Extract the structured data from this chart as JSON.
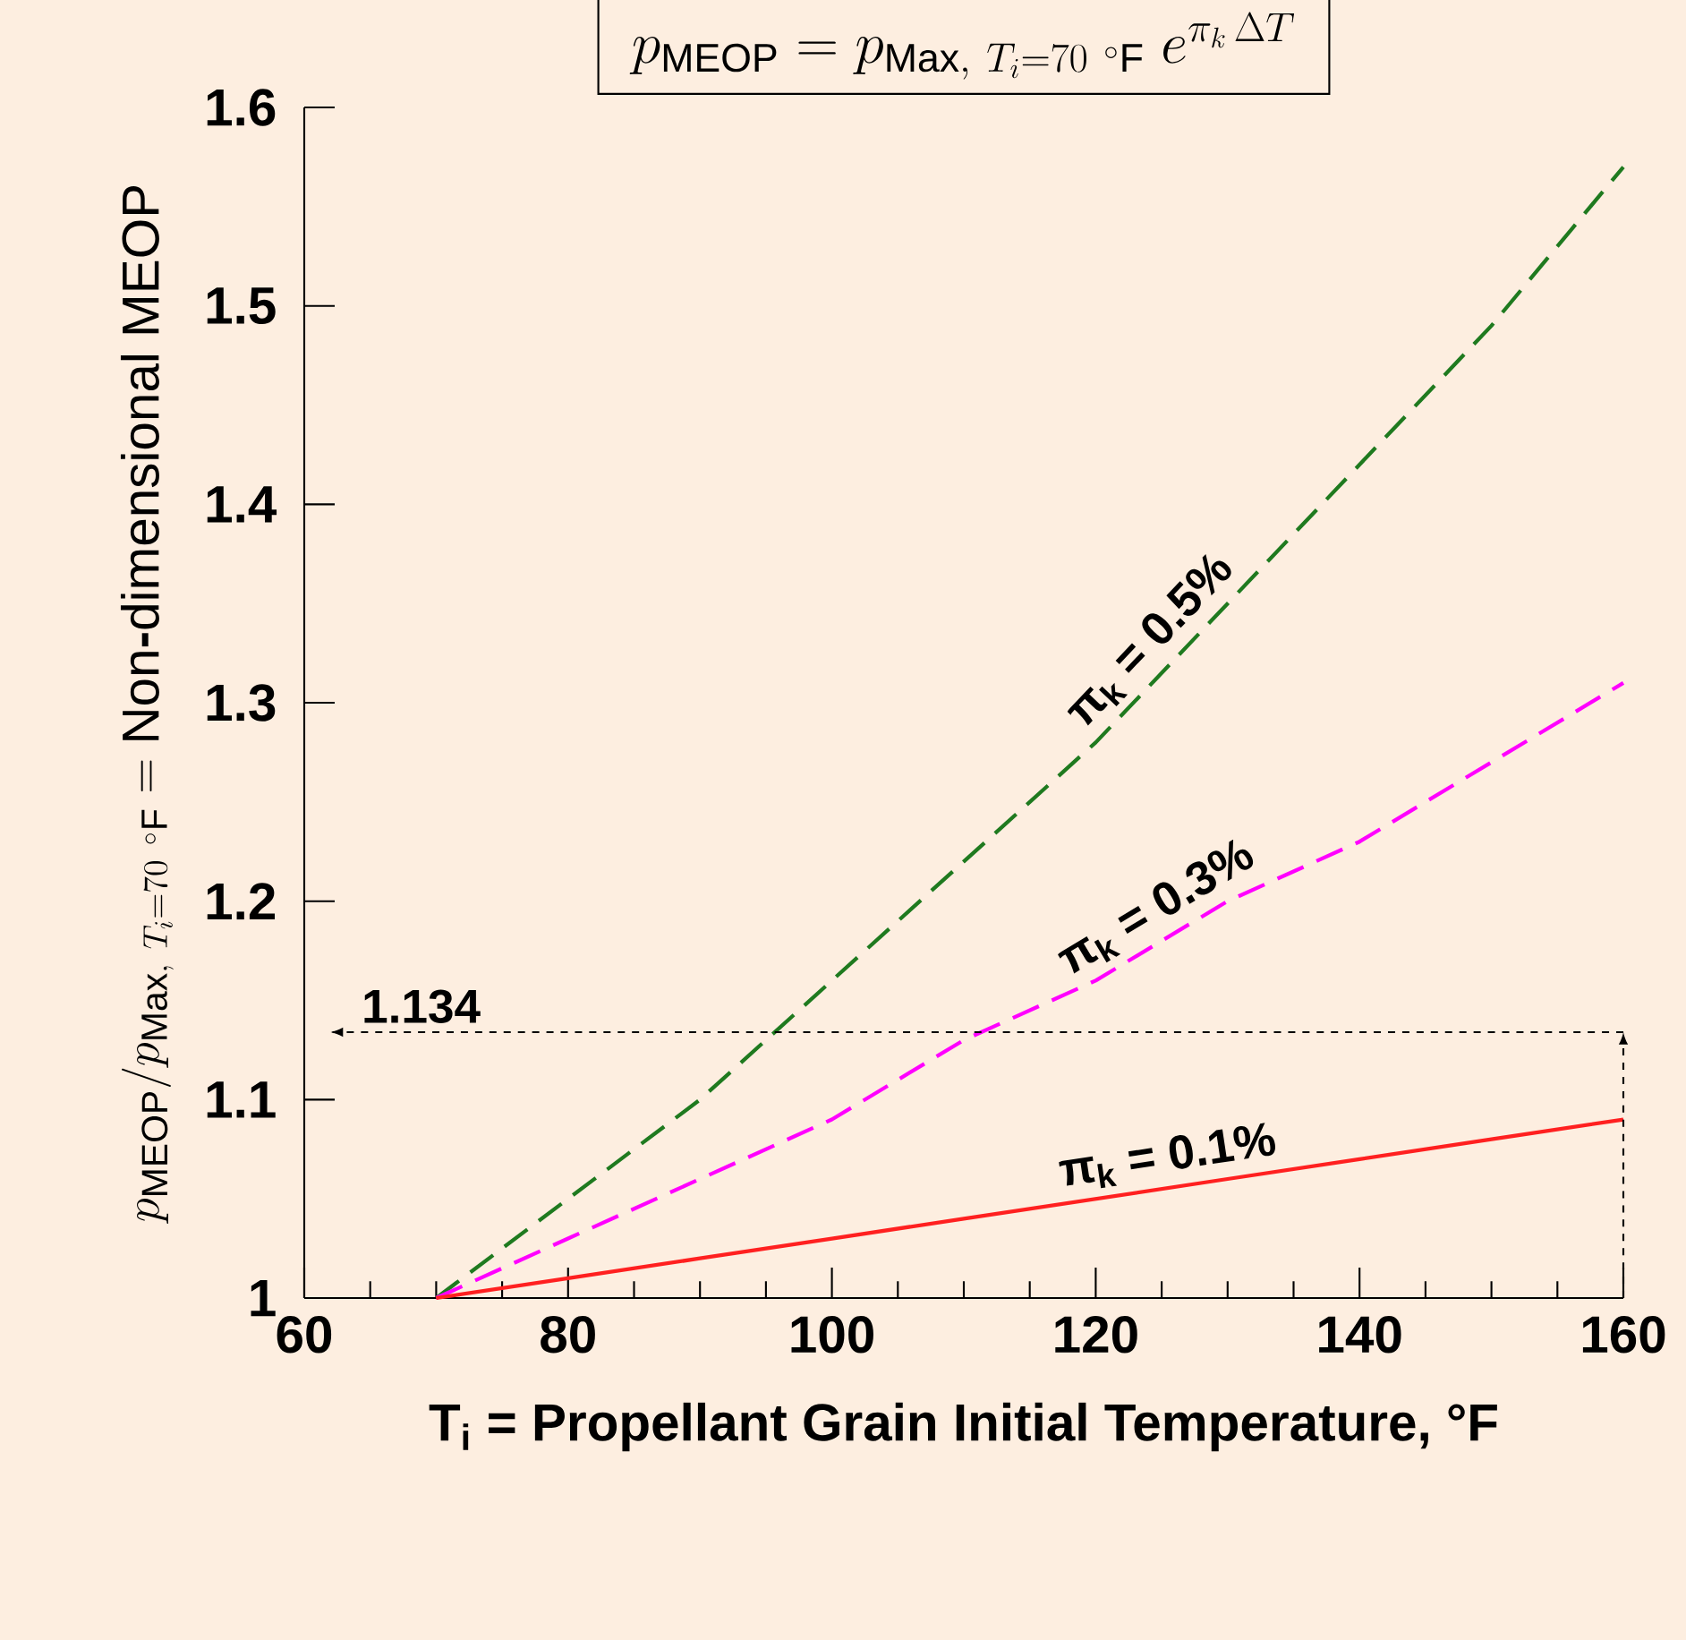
{
  "chart_data": {
    "type": "line",
    "title": "p_{\\mathrm{MEOP}} = p_{\\mathrm{Max},\\ T_{i} = 70\\ {}^{\\circ}\\mathrm{F}}\\ e^{\\pi_{k}\\,\\Delta T}",
    "xlabel": "T$_{i}$ = Propellant Grain Initial Temperature, °F",
    "ylabel": "p_{\\mathrm{MEOP}} / p_{\\mathrm{Max},\\ T_{i} = 70\\ {}^{\\circ}\\mathrm{F}} = \\mathrm{Non\\mbox{-}dimensional\\ MEOP}",
    "x": [
      70,
      80,
      90,
      100,
      110,
      120,
      130,
      140,
      150,
      160
    ],
    "series": [
      {
        "name": "π$_{k}$ = 0.5%",
        "color": "#1f7a1f",
        "line_style": "dashed",
        "values": [
          1,
          1.05,
          1.1,
          1.16,
          1.22,
          1.28,
          1.35,
          1.42,
          1.49,
          1.57
        ]
      },
      {
        "name": "π$_{k}$ = 0.3%",
        "color": "#ff00ff",
        "line_style": "dashed",
        "values": [
          1,
          1.03,
          1.06,
          1.09,
          1.13,
          1.16,
          1.2,
          1.23,
          1.27,
          1.31
        ]
      },
      {
        "name": "π$_{k}$ = 0.1%",
        "color": "#ff2020",
        "line_style": "solid",
        "values": [
          1,
          1.01,
          1.02,
          1.03,
          1.04,
          1.05,
          1.06,
          1.07,
          1.08,
          1.09
        ]
      }
    ],
    "ref_lines": [
      {
        "axis": "y",
        "value": 1.134,
        "label": "1.134",
        "color": "#000000",
        "line_style": "dashed"
      }
    ],
    "xlim": [
      60,
      160
    ],
    "xticks": [
      60,
      80,
      100,
      120,
      140,
      160
    ],
    "ylim": [
      1,
      1.6
    ],
    "yticks": [
      1,
      1.1,
      1.2,
      1.3,
      1.4,
      1.5,
      1.6
    ],
    "grid": false,
    "legend": false,
    "marker": "none"
  }
}
